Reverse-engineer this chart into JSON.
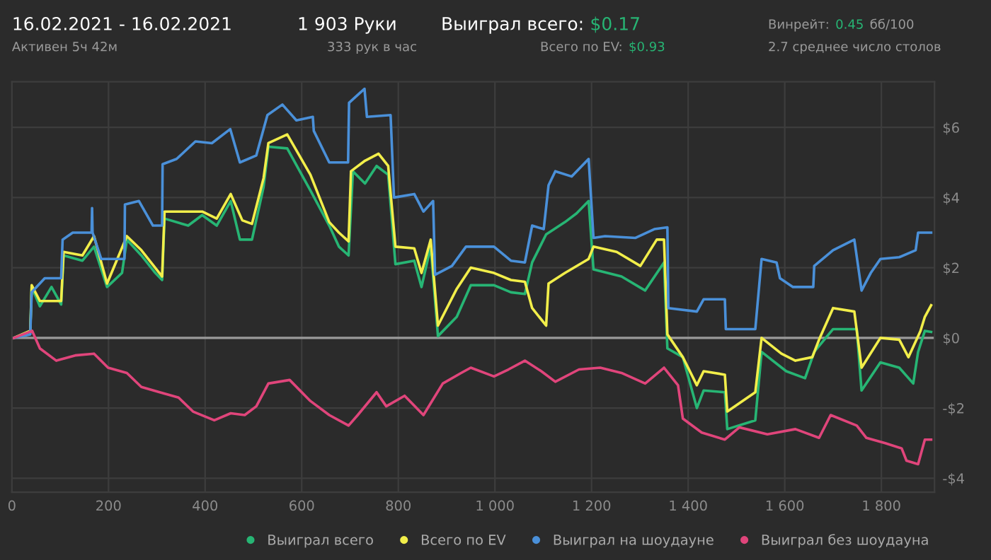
{
  "chart_data": {
    "type": "line",
    "title": "16.02.2021 - 16.02.2021",
    "subtitle": "Активен 5ч 42м",
    "annotations": [
      "1 903 Руки",
      "333 рук в час",
      "Выиграл всего:",
      "$0.17",
      "Всего по EV:",
      "$0.93",
      "Винрейт:",
      "0.45",
      "бб/100",
      "2.7 среднее число столов"
    ],
    "xlim": [
      0,
      1910
    ],
    "ylim": [
      -4.4,
      7.3
    ],
    "xticks": [
      0,
      200,
      400,
      600,
      800,
      {
        "value": 1000,
        "label": "1 000"
      },
      {
        "value": 1200,
        "label": "1 200"
      },
      {
        "value": 1400,
        "label": "1 400"
      },
      {
        "value": 1600,
        "label": "1 600"
      },
      {
        "value": 1800,
        "label": "1 800"
      }
    ],
    "yticks": [
      {
        "value": 6,
        "label": "$6"
      },
      {
        "value": 4,
        "label": "$4"
      },
      {
        "value": 2,
        "label": "$2"
      },
      {
        "value": 0,
        "label": "$0"
      },
      {
        "value": -2,
        "label": "-$2"
      },
      {
        "value": -4,
        "label": "-$4"
      }
    ],
    "grid": true,
    "legend": "bottom right",
    "marker": "none",
    "line_style": "solid",
    "ref_lines": [
      {
        "axis": "y",
        "value": 0,
        "color": "#9a9a9a"
      }
    ],
    "series": [
      {
        "name": "Выиграл всего",
        "color": "#27b574",
        "x": [
          4,
          38,
          41,
          58,
          82,
          102,
          107,
          146,
          170,
          197,
          228,
          238,
          268,
          297,
          311,
          316,
          365,
          394,
          424,
          453,
          472,
          497,
          521,
          531,
          570,
          618,
          657,
          677,
          697,
          706,
          731,
          755,
          779,
          794,
          833,
          848,
          867,
          882,
          921,
          950,
          998,
          1033,
          1062,
          1077,
          1106,
          1145,
          1169,
          1194,
          1204,
          1262,
          1311,
          1350,
          1357,
          1389,
          1418,
          1432,
          1476,
          1481,
          1539,
          1552,
          1603,
          1642,
          1661,
          1700,
          1749,
          1759,
          1798,
          1837,
          1866,
          1876,
          1890,
          1903
        ],
        "values": [
          0,
          0.2,
          1.45,
          0.9,
          1.45,
          0.95,
          2.35,
          2.2,
          2.6,
          1.45,
          1.85,
          2.8,
          2.35,
          1.85,
          1.65,
          3.4,
          3.2,
          3.5,
          3.2,
          3.9,
          2.8,
          2.8,
          4.3,
          5.45,
          5.4,
          4.2,
          3.2,
          2.6,
          2.35,
          4.75,
          4.4,
          4.9,
          4.65,
          2.1,
          2.2,
          1.45,
          2.6,
          0.05,
          0.6,
          1.5,
          1.5,
          1.3,
          1.25,
          2.15,
          2.95,
          3.3,
          3.55,
          3.9,
          1.95,
          1.75,
          1.35,
          2.15,
          -0.3,
          -0.55,
          -2.0,
          -1.5,
          -1.55,
          -2.6,
          -2.35,
          -0.4,
          -0.95,
          -1.15,
          -0.4,
          0.25,
          0.25,
          -1.5,
          -0.7,
          -0.85,
          -1.3,
          -0.4,
          0.2,
          0.17
        ]
      },
      {
        "name": "Всего по EV",
        "color": "#f2ee4a",
        "x": [
          4,
          38,
          41,
          58,
          102,
          107,
          146,
          170,
          197,
          238,
          268,
          311,
          316,
          365,
          394,
          424,
          453,
          477,
          497,
          521,
          531,
          570,
          618,
          657,
          677,
          697,
          702,
          731,
          759,
          779,
          794,
          833,
          848,
          867,
          882,
          921,
          950,
          998,
          1033,
          1062,
          1077,
          1106,
          1111,
          1145,
          1194,
          1204,
          1252,
          1301,
          1335,
          1350,
          1357,
          1389,
          1418,
          1432,
          1476,
          1481,
          1539,
          1552,
          1593,
          1622,
          1657,
          1671,
          1700,
          1744,
          1759,
          1798,
          1837,
          1856,
          1881,
          1890,
          1903
        ],
        "values": [
          0,
          0.2,
          1.5,
          1.05,
          1.05,
          2.45,
          2.35,
          2.9,
          1.55,
          2.9,
          2.5,
          1.75,
          3.6,
          3.6,
          3.6,
          3.4,
          4.1,
          3.35,
          3.25,
          4.55,
          5.55,
          5.8,
          4.65,
          3.3,
          3.0,
          2.75,
          4.75,
          5.05,
          5.25,
          4.9,
          2.6,
          2.55,
          1.85,
          2.8,
          0.35,
          1.4,
          2.0,
          1.85,
          1.65,
          1.6,
          0.85,
          0.35,
          1.55,
          1.85,
          2.25,
          2.6,
          2.45,
          2.05,
          2.8,
          2.8,
          0.1,
          -0.55,
          -1.35,
          -0.95,
          -1.05,
          -2.1,
          -1.55,
          0.0,
          -0.45,
          -0.65,
          -0.55,
          -0.05,
          0.85,
          0.75,
          -0.85,
          0.0,
          -0.05,
          -0.55,
          0.2,
          0.6,
          0.93
        ]
      },
      {
        "name": "Выиграл на шоудауне",
        "color": "#4a90d9",
        "x": [
          4,
          38,
          41,
          68,
          102,
          105,
          126,
          165,
          166,
          167,
          185,
          233,
          234,
          263,
          292,
          311,
          312,
          341,
          380,
          414,
          452,
          472,
          506,
          529,
          560,
          589,
          623,
          625,
          657,
          696,
          698,
          730,
          735,
          784,
          791,
          833,
          852,
          872,
          876,
          911,
          940,
          998,
          1033,
          1062,
          1077,
          1101,
          1111,
          1125,
          1159,
          1194,
          1204,
          1228,
          1291,
          1330,
          1357,
          1359,
          1418,
          1432,
          1476,
          1478,
          1539,
          1552,
          1583,
          1590,
          1617,
          1659,
          1661,
          1700,
          1744,
          1759,
          1778,
          1798,
          1837,
          1871,
          1876,
          1890,
          1903
        ],
        "values": [
          0,
          0.1,
          1.3,
          1.7,
          1.7,
          2.8,
          3.0,
          3.0,
          3.7,
          3.0,
          2.25,
          2.25,
          3.8,
          3.9,
          3.2,
          3.2,
          4.95,
          5.1,
          5.6,
          5.55,
          5.95,
          5.0,
          5.2,
          6.35,
          6.65,
          6.2,
          6.3,
          5.9,
          5.0,
          5.0,
          6.7,
          7.1,
          6.3,
          6.35,
          4.0,
          4.1,
          3.6,
          3.9,
          1.8,
          2.05,
          2.6,
          2.6,
          2.2,
          2.15,
          3.2,
          3.1,
          4.35,
          4.75,
          4.6,
          5.1,
          2.85,
          2.9,
          2.85,
          3.1,
          3.15,
          0.85,
          0.75,
          1.1,
          1.1,
          0.25,
          0.25,
          2.25,
          2.15,
          1.7,
          1.45,
          1.45,
          2.05,
          2.5,
          2.8,
          1.35,
          1.85,
          2.25,
          2.3,
          2.5,
          3.0,
          3.0,
          3.0
        ]
      },
      {
        "name": "Выиграл без шоудауна",
        "color": "#e0457b",
        "x": [
          4,
          42,
          58,
          92,
          131,
          170,
          199,
          238,
          268,
          306,
          345,
          375,
          419,
          453,
          482,
          506,
          531,
          575,
          618,
          657,
          697,
          716,
          755,
          775,
          813,
          852,
          892,
          930,
          950,
          998,
          1028,
          1062,
          1096,
          1125,
          1174,
          1218,
          1262,
          1311,
          1350,
          1379,
          1389,
          1428,
          1476,
          1506,
          1564,
          1622,
          1671,
          1695,
          1749,
          1769,
          1808,
          1842,
          1852,
          1876,
          1890,
          1903
        ],
        "values": [
          0,
          0.2,
          -0.3,
          -0.65,
          -0.5,
          -0.45,
          -0.85,
          -1.0,
          -1.4,
          -1.55,
          -1.7,
          -2.1,
          -2.35,
          -2.15,
          -2.2,
          -1.95,
          -1.3,
          -1.2,
          -1.8,
          -2.2,
          -2.5,
          -2.2,
          -1.55,
          -1.95,
          -1.65,
          -2.2,
          -1.3,
          -1.0,
          -0.85,
          -1.1,
          -0.9,
          -0.65,
          -0.95,
          -1.25,
          -0.9,
          -0.85,
          -1.0,
          -1.3,
          -0.85,
          -1.35,
          -2.3,
          -2.7,
          -2.9,
          -2.55,
          -2.75,
          -2.6,
          -2.85,
          -2.2,
          -2.5,
          -2.85,
          -3.0,
          -3.15,
          -3.5,
          -3.6,
          -2.9,
          -2.9
        ]
      }
    ]
  }
}
